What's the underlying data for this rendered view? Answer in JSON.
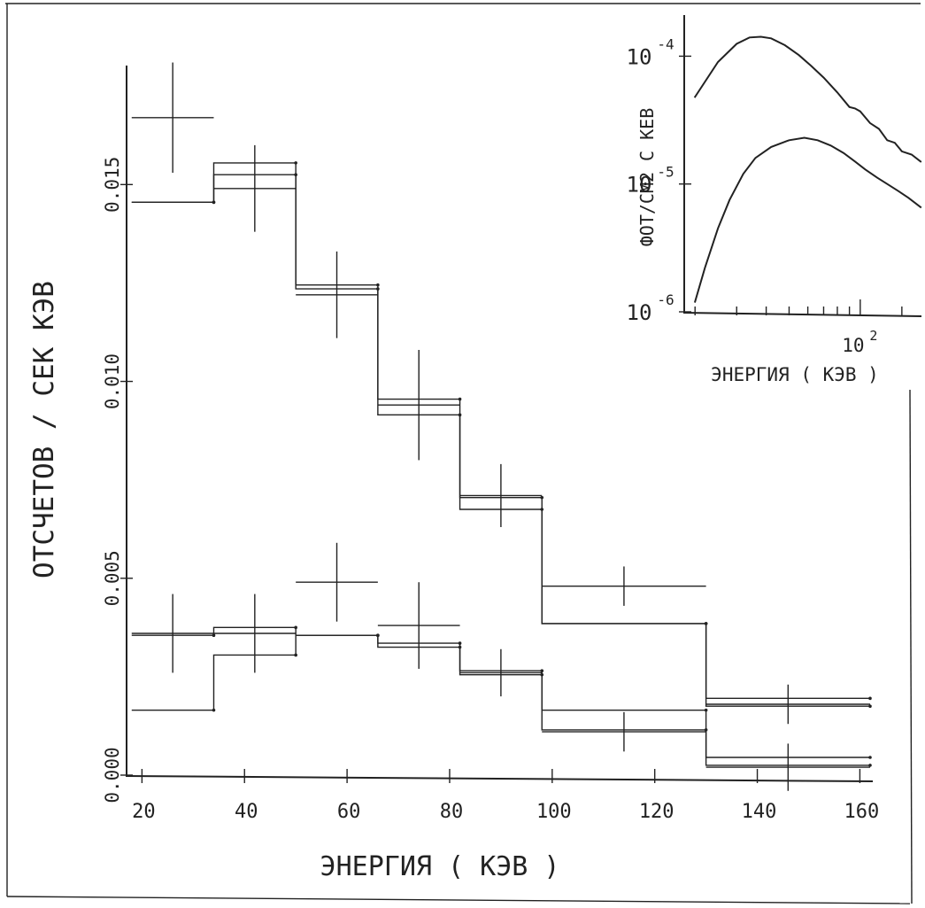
{
  "chart_data": [
    {
      "type": "histogram-errorbar",
      "xlabel": "ЭНЕРГИЯ ( КЭВ )",
      "ylabel": "ОТСЧЕТОВ / СЕК КЭВ",
      "xlim": [
        17,
        162
      ],
      "ylim": [
        0,
        0.018
      ],
      "x_ticks": [
        20,
        40,
        60,
        80,
        100,
        120,
        140,
        160
      ],
      "x_tick_labels": [
        "20",
        "40",
        "60",
        "80",
        "100",
        "120",
        "140",
        "160"
      ],
      "y_ticks": [
        0,
        0.005,
        0.01,
        0.015
      ],
      "y_tick_labels": [
        "0.000",
        "0.005",
        "0.010",
        "0.015"
      ],
      "bin_edges": [
        18,
        34,
        50,
        66,
        82,
        98,
        130,
        162
      ],
      "series": [
        {
          "model_a": [
            0.01455,
            0.01525,
            0.01235,
            0.00915,
            0.00675,
            0.00385,
            0.00175
          ],
          "model_b": [
            0.01455,
            0.01555,
            0.01245,
            0.00955,
            0.00705,
            0.00385,
            0.00195
          ],
          "points": [
            {
              "x": 26,
              "y": 0.0167,
              "xerr": 8,
              "yerr": 0.0014
            },
            {
              "x": 42,
              "y": 0.0149,
              "xerr": 8,
              "yerr": 0.0011
            },
            {
              "x": 58,
              "y": 0.0122,
              "xerr": 8,
              "yerr": 0.0011
            },
            {
              "x": 74,
              "y": 0.0094,
              "xerr": 8,
              "yerr": 0.0014
            },
            {
              "x": 90,
              "y": 0.0071,
              "xerr": 8,
              "yerr": 0.0008
            },
            {
              "x": 114,
              "y": 0.0048,
              "xerr": 16,
              "yerr": 0.0005
            },
            {
              "x": 146,
              "y": 0.0018,
              "xerr": 16,
              "yerr": 0.0005
            }
          ]
        },
        {
          "model_a": [
            0.00165,
            0.00305,
            0.00355,
            0.00325,
            0.00255,
            0.00165,
            0.00025
          ],
          "model_b": [
            0.00355,
            0.00375,
            0.00355,
            0.00335,
            0.00265,
            0.00115,
            0.00045
          ],
          "points": [
            {
              "x": 26,
              "y": 0.0036,
              "xerr": 8,
              "yerr": 0.001
            },
            {
              "x": 42,
              "y": 0.0036,
              "xerr": 8,
              "yerr": 0.001
            },
            {
              "x": 58,
              "y": 0.0049,
              "xerr": 8,
              "yerr": 0.001
            },
            {
              "x": 74,
              "y": 0.0038,
              "xerr": 8,
              "yerr": 0.0011
            },
            {
              "x": 90,
              "y": 0.0026,
              "xerr": 8,
              "yerr": 0.0006
            },
            {
              "x": 114,
              "y": 0.0011,
              "xerr": 16,
              "yerr": 0.0005
            },
            {
              "x": 146,
              "y": 0.0002,
              "xerr": 16,
              "yerr": 0.0006
            }
          ]
        }
      ]
    },
    {
      "type": "line",
      "scale": "log-log",
      "xlabel": "ЭНЕРГИЯ ( КЭВ )",
      "ylabel": "ФОТ/СМ2 С КЕВ",
      "xlim": [
        18,
        180
      ],
      "ylim": [
        1e-06,
        0.0002
      ],
      "x_tick_labels": [
        {
          "base": "10",
          "exp": "2",
          "value": 100
        }
      ],
      "y_tick_labels": [
        {
          "base": "10",
          "exp": "-4",
          "value": 0.0001
        },
        {
          "base": "10",
          "exp": "-5",
          "value": 1e-05
        },
        {
          "base": "10",
          "exp": "-6",
          "value": 1e-06
        }
      ],
      "series": [
        {
          "x": [
            20,
            25,
            30,
            34,
            38,
            42,
            48,
            55,
            62,
            70,
            80,
            90,
            95,
            100,
            110,
            120,
            130,
            140,
            150,
            165,
            180
          ],
          "y": [
            4.8e-05,
            9e-05,
            0.000125,
            0.00014,
            0.000142,
            0.000138,
            0.000122,
            0.000102,
            8.4e-05,
            6.8e-05,
            5.2e-05,
            4e-05,
            3.9e-05,
            3.7e-05,
            3e-05,
            2.7e-05,
            2.2e-05,
            2.1e-05,
            1.8e-05,
            1.7e-05,
            1.5e-05
          ]
        },
        {
          "x": [
            20,
            22,
            25,
            28,
            32,
            36,
            42,
            50,
            58,
            66,
            75,
            85,
            95,
            105,
            118,
            130,
            145,
            160,
            180
          ],
          "y": [
            1.2e-06,
            2.2e-06,
            4.5e-06,
            7.5e-06,
            1.2e-05,
            1.6e-05,
            1.95e-05,
            2.2e-05,
            2.3e-05,
            2.2e-05,
            2e-05,
            1.75e-05,
            1.5e-05,
            1.3e-05,
            1.12e-05,
            1e-05,
            8.8e-06,
            7.8e-06,
            6.6e-06
          ]
        }
      ]
    }
  ]
}
